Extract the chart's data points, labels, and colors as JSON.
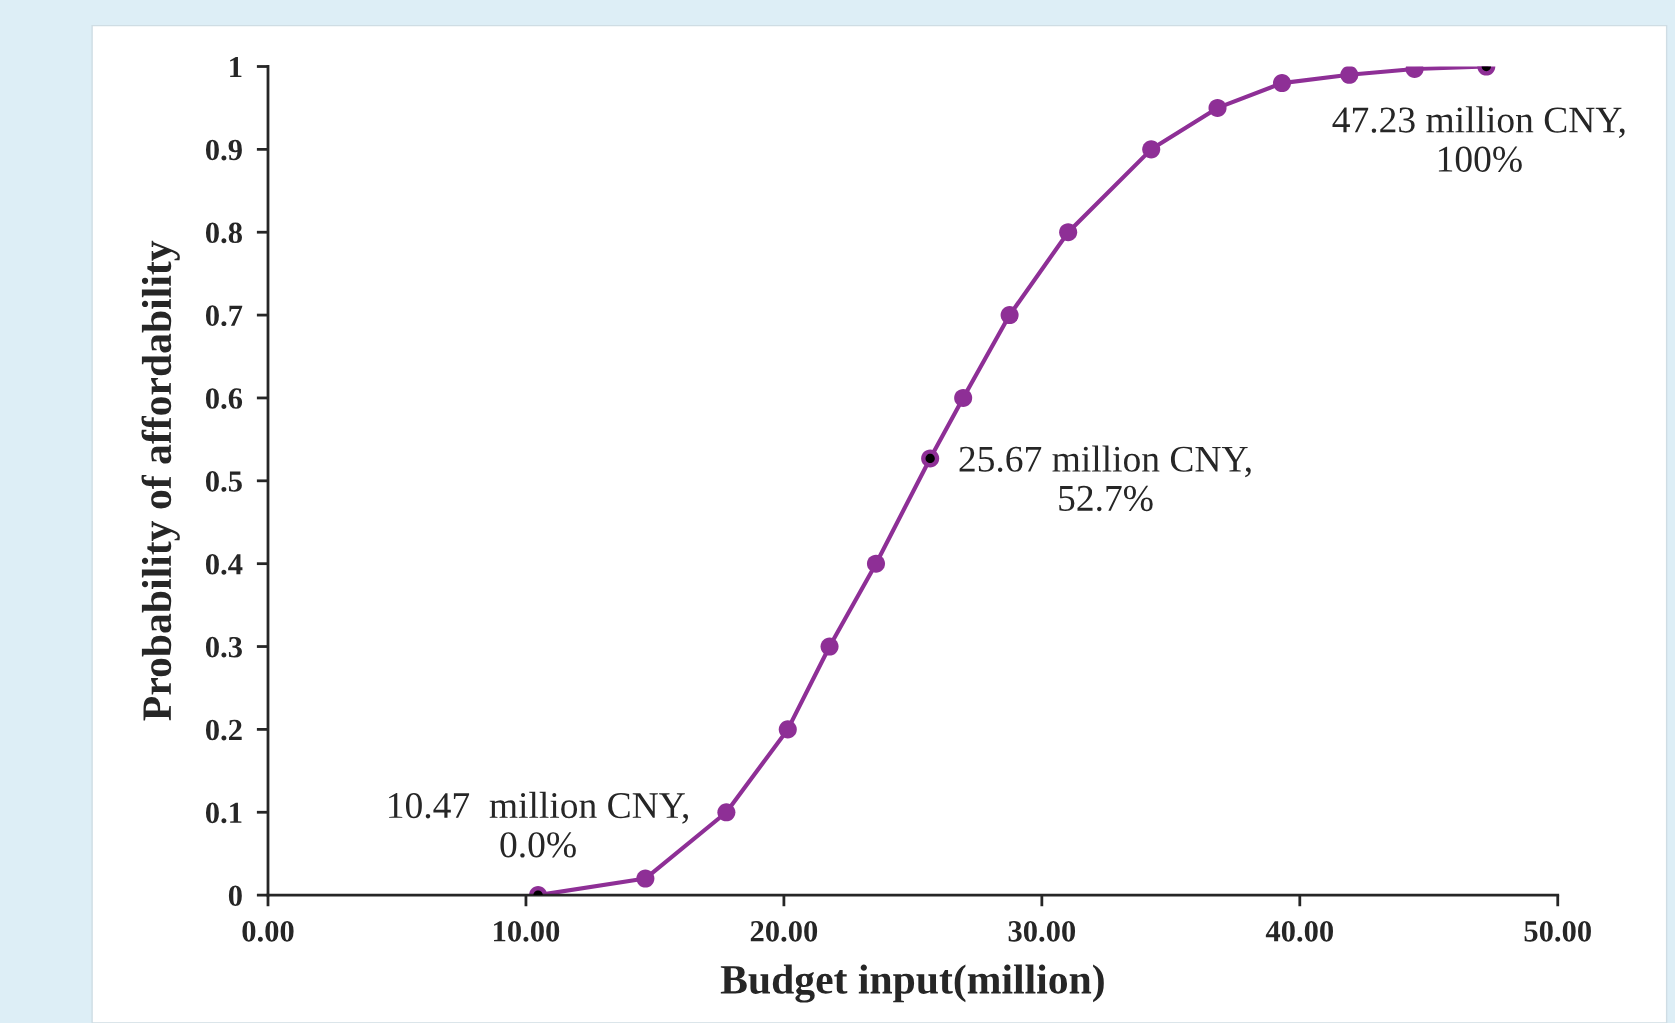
{
  "chart_data": {
    "type": "line",
    "xlabel": "Budget input(million)",
    "ylabel": "Probability of affordability",
    "series": [
      {
        "color": "#8e2f96",
        "marker": "circle",
        "x": [
          10.47,
          14.63,
          17.77,
          20.15,
          21.77,
          23.57,
          25.67,
          26.95,
          28.75,
          31.02,
          34.24,
          36.81,
          39.31,
          41.92,
          44.45,
          47.23
        ],
        "values": [
          0,
          0.02,
          0.1,
          0.2,
          0.3,
          0.4,
          0.527,
          0.6,
          0.7,
          0.8,
          0.9,
          0.95,
          0.98,
          0.99,
          0.997,
          1
        ]
      },
      {
        "type": "scatter",
        "color": "#000000",
        "marker": "circle",
        "x": [
          10.47,
          25.67,
          47.23
        ],
        "values": [
          0,
          0.527,
          1
        ]
      }
    ],
    "annotations": [
      {
        "text": "10.47  million CNY,\n0.0%",
        "x": 10.47,
        "y": 0
      },
      {
        "text": "25.67 million CNY,\n52.7%",
        "x": 25.67,
        "y": 0.527
      },
      {
        "text": "47.23 million CNY,\n100%",
        "x": 47.23,
        "y": 1
      }
    ],
    "xlim": [
      0,
      50
    ],
    "ylim": [
      0,
      1
    ],
    "xticks": [
      {
        "value": 0,
        "label": "0.00"
      },
      {
        "value": 10,
        "label": "10.00"
      },
      {
        "value": 20,
        "label": "20.00"
      },
      {
        "value": 30,
        "label": "30.00"
      },
      {
        "value": 40,
        "label": "40.00"
      },
      {
        "value": 50,
        "label": "50.00"
      }
    ],
    "yticks": [
      0,
      0.1,
      0.2,
      0.3,
      0.4,
      0.5,
      0.6,
      0.7,
      0.8,
      0.9,
      1
    ],
    "grid": false,
    "legend": false
  }
}
